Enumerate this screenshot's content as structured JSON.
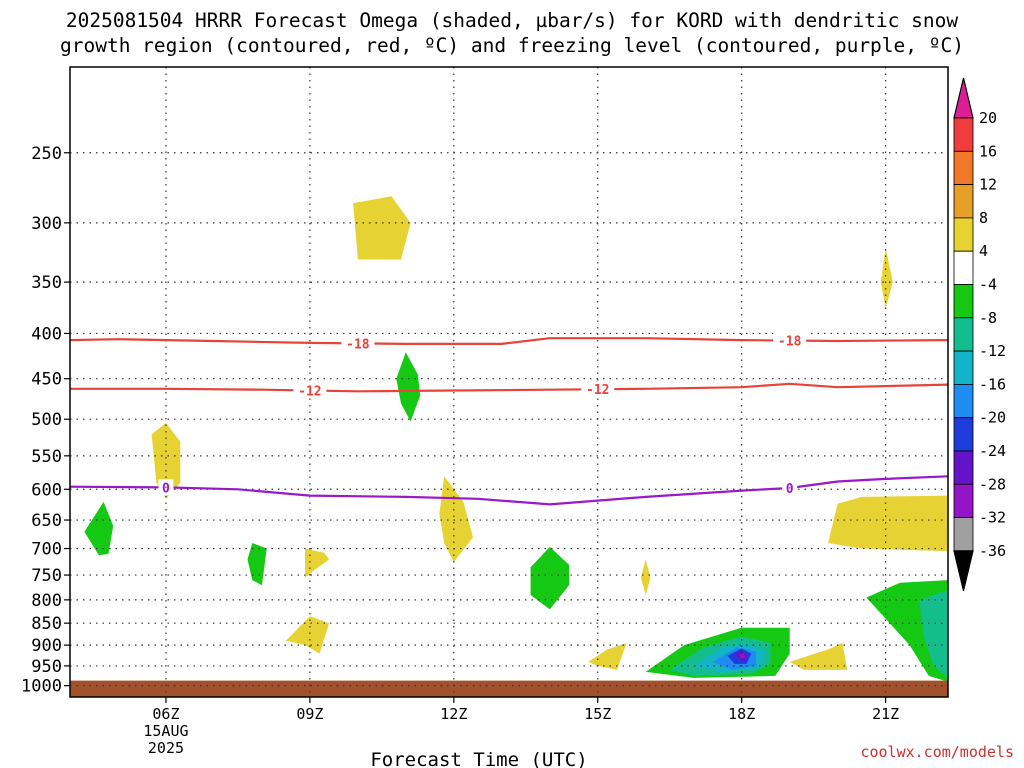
{
  "title": {
    "line1": "2025081504 HRRR Forecast Omega (shaded, µbar/s) for KORD with dendritic snow",
    "line2": "growth region (contoured, red, ºC) and freezing level (contoured, purple, ºC)"
  },
  "credit": "coolwx.com/models",
  "chart_data": {
    "type": "time-height-contour",
    "xlabel": "Forecast Time (UTC)",
    "x_range_hours_utc": [
      4.0,
      22.3
    ],
    "x_ticks": [
      {
        "hour": 6,
        "label": "06Z",
        "date": "15AUG",
        "year": "2025"
      },
      {
        "hour": 9,
        "label": "09Z"
      },
      {
        "hour": 12,
        "label": "12Z"
      },
      {
        "hour": 15,
        "label": "15Z"
      },
      {
        "hour": 18,
        "label": "18Z"
      },
      {
        "hour": 21,
        "label": "21Z"
      }
    ],
    "y_range_hpa": [
      1030,
      200
    ],
    "y_ticks": [
      250,
      300,
      350,
      400,
      450,
      500,
      550,
      600,
      650,
      700,
      750,
      800,
      850,
      900,
      950,
      1000
    ],
    "grid": "dotted",
    "colorbar": {
      "levels": [
        20,
        16,
        12,
        8,
        4,
        -4,
        -8,
        -12,
        -16,
        -20,
        -24,
        -28,
        -32,
        -36
      ],
      "colors": [
        "#dc1e96",
        "#f03c3c",
        "#f07828",
        "#e6a028",
        "#e6d232",
        "#ffffff",
        "#14c814",
        "#14be8c",
        "#14b4c8",
        "#1e8cf0",
        "#1e3cdc",
        "#6414c8",
        "#9614c8",
        "#a0a0a0",
        "#000000"
      ]
    },
    "contours": [
      {
        "name": "-18",
        "color": "#e8423a",
        "label_hours": [
          10.0,
          19.0
        ],
        "points": [
          [
            4.0,
            407
          ],
          [
            5.0,
            406
          ],
          [
            7.0,
            408
          ],
          [
            9.0,
            410
          ],
          [
            11.0,
            411
          ],
          [
            13.0,
            411
          ],
          [
            14.0,
            405
          ],
          [
            16.0,
            405
          ],
          [
            18.0,
            407
          ],
          [
            20.0,
            408
          ],
          [
            22.3,
            407
          ]
        ]
      },
      {
        "name": "-12",
        "color": "#e8423a",
        "label_hours": [
          9.0,
          15.0
        ],
        "points": [
          [
            4.0,
            462
          ],
          [
            6.0,
            462
          ],
          [
            8.0,
            463
          ],
          [
            10.0,
            465
          ],
          [
            12.0,
            464
          ],
          [
            14.0,
            463
          ],
          [
            16.0,
            462
          ],
          [
            18.0,
            460
          ],
          [
            19.0,
            456
          ],
          [
            20.0,
            460
          ],
          [
            22.3,
            457
          ]
        ]
      },
      {
        "name": "0",
        "color": "#9a18c8",
        "label_hours": [
          6.0,
          19.0
        ],
        "points": [
          [
            4.0,
            596
          ],
          [
            6.0,
            597
          ],
          [
            7.5,
            600
          ],
          [
            9.0,
            610
          ],
          [
            11.0,
            612
          ],
          [
            12.5,
            615
          ],
          [
            14.0,
            624
          ],
          [
            16.0,
            612
          ],
          [
            18.0,
            602
          ],
          [
            19.0,
            598
          ],
          [
            20.0,
            588
          ],
          [
            21.0,
            584
          ],
          [
            22.3,
            580
          ]
        ]
      }
    ],
    "surface_band_hpa": [
      987,
      1030
    ],
    "omega_features": [
      {
        "value": 4,
        "color": "#e6d232",
        "poly": [
          [
            9.9,
            285
          ],
          [
            10.7,
            280
          ],
          [
            11.1,
            300
          ],
          [
            10.9,
            330
          ],
          [
            10.0,
            330
          ]
        ]
      },
      {
        "value": 4,
        "color": "#e6d232",
        "poly": [
          [
            21.0,
            320
          ],
          [
            21.15,
            350
          ],
          [
            21.0,
            375
          ],
          [
            20.9,
            350
          ]
        ]
      },
      {
        "value": -4,
        "color": "#14c814",
        "poly": [
          [
            11.0,
            420
          ],
          [
            11.25,
            445
          ],
          [
            11.3,
            470
          ],
          [
            11.1,
            503
          ],
          [
            10.9,
            480
          ],
          [
            10.8,
            450
          ]
        ]
      },
      {
        "value": 4,
        "color": "#e6d232",
        "poly": [
          [
            5.7,
            520
          ],
          [
            6.0,
            505
          ],
          [
            6.3,
            530
          ],
          [
            6.3,
            590
          ],
          [
            6.0,
            615
          ],
          [
            5.8,
            590
          ]
        ]
      },
      {
        "value": -4,
        "color": "#14c814",
        "poly": [
          [
            4.7,
            620
          ],
          [
            4.9,
            660
          ],
          [
            4.8,
            710
          ],
          [
            4.6,
            712
          ],
          [
            4.3,
            670
          ]
        ]
      },
      {
        "value": 4,
        "color": "#e6d232",
        "poly": [
          [
            11.8,
            580
          ],
          [
            12.2,
            620
          ],
          [
            12.4,
            680
          ],
          [
            12.0,
            725
          ],
          [
            11.8,
            690
          ],
          [
            11.7,
            640
          ]
        ]
      },
      {
        "value": -4,
        "color": "#14c814",
        "poly": [
          [
            7.8,
            690
          ],
          [
            8.1,
            700
          ],
          [
            8.0,
            770
          ],
          [
            7.8,
            760
          ],
          [
            7.7,
            720
          ]
        ]
      },
      {
        "value": 4,
        "color": "#e6d232",
        "poly": [
          [
            8.9,
            700
          ],
          [
            9.3,
            708
          ],
          [
            9.4,
            720
          ],
          [
            9.1,
            740
          ],
          [
            8.9,
            755
          ]
        ]
      },
      {
        "value": -4,
        "color": "#14c814",
        "poly": [
          [
            13.6,
            735
          ],
          [
            14.0,
            697
          ],
          [
            14.4,
            730
          ],
          [
            14.4,
            770
          ],
          [
            14.0,
            820
          ],
          [
            13.6,
            790
          ]
        ]
      },
      {
        "value": 4,
        "color": "#e6d232",
        "poly": [
          [
            16.0,
            720
          ],
          [
            16.1,
            755
          ],
          [
            16.0,
            790
          ],
          [
            15.9,
            755
          ]
        ]
      },
      {
        "value": 4,
        "color": "#e6d232",
        "poly": [
          [
            8.5,
            890
          ],
          [
            9.0,
            835
          ],
          [
            9.4,
            850
          ],
          [
            9.2,
            920
          ],
          [
            8.9,
            900
          ]
        ]
      },
      {
        "value": 4,
        "color": "#e6d232",
        "poly": [
          [
            14.8,
            940
          ],
          [
            15.2,
            910
          ],
          [
            15.6,
            895
          ],
          [
            15.4,
            960
          ],
          [
            15.0,
            950
          ]
        ]
      },
      {
        "value": 4,
        "color": "#e6d232",
        "poly": [
          [
            20.0,
            623
          ],
          [
            20.5,
            612
          ],
          [
            22.3,
            610
          ],
          [
            22.3,
            705
          ],
          [
            20.5,
            700
          ],
          [
            19.8,
            690
          ],
          [
            19.9,
            655
          ]
        ]
      },
      {
        "value": 4,
        "color": "#e6d232",
        "poly": [
          [
            19.0,
            940
          ],
          [
            19.8,
            910
          ],
          [
            20.1,
            895
          ],
          [
            20.2,
            960
          ],
          [
            19.3,
            960
          ]
        ]
      },
      {
        "value": -4,
        "color": "#14c814",
        "poly": [
          [
            16.0,
            965
          ],
          [
            16.8,
            900
          ],
          [
            18.0,
            860
          ],
          [
            19.0,
            860
          ],
          [
            19.0,
            920
          ],
          [
            18.7,
            975
          ],
          [
            17.0,
            980
          ]
        ]
      },
      {
        "value": -8,
        "color": "#14be8c",
        "poly": [
          [
            16.5,
            960
          ],
          [
            17.2,
            905
          ],
          [
            18.0,
            880
          ],
          [
            18.6,
            895
          ],
          [
            18.6,
            945
          ],
          [
            18.2,
            970
          ],
          [
            17.0,
            975
          ]
        ]
      },
      {
        "value": -12,
        "color": "#14b4c8",
        "poly": [
          [
            17.0,
            950
          ],
          [
            17.6,
            905
          ],
          [
            18.1,
            895
          ],
          [
            18.5,
            915
          ],
          [
            18.4,
            955
          ],
          [
            17.6,
            965
          ]
        ]
      },
      {
        "value": -16,
        "color": "#1e8cf0",
        "poly": [
          [
            17.4,
            940
          ],
          [
            17.9,
            905
          ],
          [
            18.3,
            915
          ],
          [
            18.3,
            950
          ],
          [
            17.8,
            960
          ]
        ]
      },
      {
        "value": -20,
        "color": "#1e3cdc",
        "poly": [
          [
            17.7,
            925
          ],
          [
            18.0,
            908
          ],
          [
            18.2,
            920
          ],
          [
            18.1,
            945
          ],
          [
            17.85,
            945
          ]
        ]
      },
      {
        "value": -24,
        "color": "#6414c8",
        "poly": [
          [
            17.85,
            922
          ],
          [
            18.0,
            912
          ],
          [
            18.12,
            925
          ],
          [
            18.05,
            940
          ]
        ]
      },
      {
        "value": -28,
        "color": "#9614c8",
        "poly": [
          [
            17.95,
            922
          ],
          [
            18.05,
            918
          ],
          [
            18.07,
            930
          ],
          [
            17.98,
            932
          ]
        ]
      },
      {
        "value": -4,
        "color": "#14c814",
        "poly": [
          [
            20.6,
            795
          ],
          [
            21.3,
            765
          ],
          [
            22.3,
            760
          ],
          [
            22.3,
            990
          ],
          [
            21.9,
            975
          ],
          [
            21.5,
            900
          ]
        ]
      },
      {
        "value": -8,
        "color": "#14be8c",
        "poly": [
          [
            21.7,
            800
          ],
          [
            22.3,
            780
          ],
          [
            22.3,
            980
          ],
          [
            22.0,
            950
          ],
          [
            21.8,
            880
          ]
        ]
      }
    ]
  }
}
